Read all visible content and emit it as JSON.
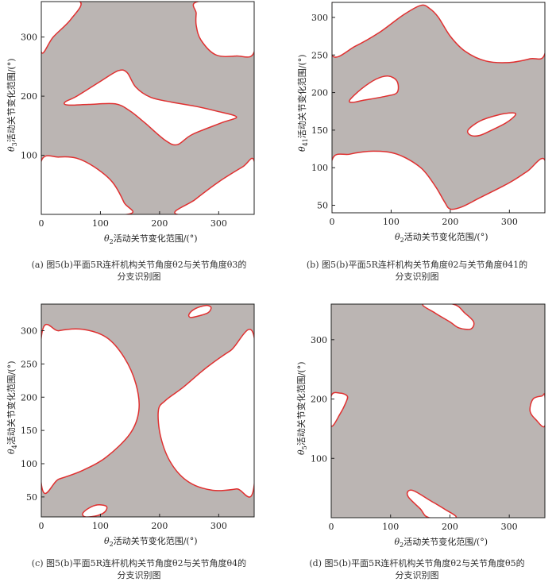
{
  "chart_data": [
    {
      "type": "region",
      "panel": "a",
      "caption_line1": "(a) 图5(b)平面5R连杆机构关节角度θ2与关节角度θ3的",
      "caption_line2": "分支识别图",
      "xlabel_pre": "θ",
      "xlabel_sub": "2",
      "xlabel_post": "活动关节变化范围/(°)",
      "ylabel_pre": "θ",
      "ylabel_sub": "3",
      "ylabel_post": "活动关节变化范围/(°)",
      "xlim": [
        0,
        360
      ],
      "ylim": [
        0,
        360
      ],
      "xticks": [
        0,
        100,
        200,
        300
      ],
      "yticks": [
        100,
        200,
        300
      ],
      "fill_color": "#bbb5b3",
      "boundary_color": "#e03030",
      "holes": [
        [
          [
            0,
            275
          ],
          [
            20,
            300
          ],
          [
            50,
            330
          ],
          [
            65,
            360
          ],
          [
            0,
            360
          ]
        ],
        [
          [
            265,
            360
          ],
          [
            262,
            340
          ],
          [
            262,
            320
          ],
          [
            270,
            295
          ],
          [
            295,
            270
          ],
          [
            330,
            268
          ],
          [
            360,
            275
          ],
          [
            360,
            360
          ]
        ],
        [
          [
            0,
            90
          ],
          [
            30,
            97
          ],
          [
            60,
            95
          ],
          [
            90,
            80
          ],
          [
            120,
            55
          ],
          [
            140,
            20
          ],
          [
            145,
            0
          ],
          [
            0,
            0
          ]
        ],
        [
          [
            230,
            0
          ],
          [
            260,
            25
          ],
          [
            300,
            55
          ],
          [
            340,
            80
          ],
          [
            360,
            90
          ],
          [
            360,
            0
          ]
        ],
        [
          [
            40,
            190
          ],
          [
            60,
            200
          ],
          [
            100,
            225
          ],
          [
            130,
            243
          ],
          [
            145,
            240
          ],
          [
            160,
            215
          ],
          [
            185,
            198
          ],
          [
            220,
            190
          ],
          [
            260,
            183
          ],
          [
            295,
            175
          ],
          [
            330,
            165
          ],
          [
            305,
            155
          ],
          [
            255,
            135
          ],
          [
            230,
            118
          ],
          [
            210,
            125
          ],
          [
            175,
            155
          ],
          [
            150,
            175
          ],
          [
            125,
            187
          ],
          [
            80,
            186
          ],
          [
            45,
            185
          ]
        ]
      ]
    },
    {
      "type": "region",
      "panel": "b",
      "caption_line1": "(b) 图5(b)平面5R连杆机构关节角度θ2与关节角度θ41的",
      "caption_line2": "分支识别图",
      "xlabel_pre": "θ",
      "xlabel_sub": "2",
      "xlabel_post": "活动关节变化范围/(°)",
      "ylabel_pre": "θ",
      "ylabel_sub": "41",
      "ylabel_post": "活动关节变化范围/(°)",
      "xlim": [
        0,
        360
      ],
      "ylim": [
        40,
        320
      ],
      "xticks": [
        0,
        100,
        200,
        300
      ],
      "yticks": [
        50,
        100,
        150,
        200,
        250,
        300
      ],
      "fill_color": "#bbb5b3",
      "boundary_color": "#e03030",
      "holes": [
        [
          [
            0,
            250
          ],
          [
            40,
            262
          ],
          [
            80,
            280
          ],
          [
            120,
            303
          ],
          [
            150,
            316
          ],
          [
            165,
            312
          ],
          [
            180,
            300
          ],
          [
            200,
            275
          ],
          [
            225,
            255
          ],
          [
            260,
            242
          ],
          [
            300,
            240
          ],
          [
            335,
            245
          ],
          [
            360,
            252
          ],
          [
            360,
            320
          ],
          [
            0,
            320
          ]
        ],
        [
          [
            0,
            110
          ],
          [
            30,
            118
          ],
          [
            70,
            122
          ],
          [
            110,
            118
          ],
          [
            150,
            100
          ],
          [
            175,
            75
          ],
          [
            190,
            55
          ],
          [
            200,
            45
          ],
          [
            220,
            48
          ],
          [
            250,
            60
          ],
          [
            300,
            80
          ],
          [
            330,
            95
          ],
          [
            360,
            110
          ],
          [
            360,
            40
          ],
          [
            0,
            40
          ]
        ],
        [
          [
            30,
            190
          ],
          [
            50,
            205
          ],
          [
            75,
            218
          ],
          [
            95,
            222
          ],
          [
            110,
            215
          ],
          [
            110,
            200
          ],
          [
            90,
            195
          ],
          [
            55,
            190
          ],
          [
            35,
            187
          ]
        ],
        [
          [
            230,
            150
          ],
          [
            250,
            162
          ],
          [
            280,
            170
          ],
          [
            305,
            173
          ],
          [
            310,
            170
          ],
          [
            295,
            160
          ],
          [
            270,
            150
          ],
          [
            250,
            143
          ],
          [
            235,
            143
          ]
        ]
      ]
    },
    {
      "type": "region",
      "panel": "c",
      "caption_line1": "(c) 图5(b)平面5R连杆机构关节角度θ2与关节角度θ4的",
      "caption_line2": "分支识别图",
      "xlabel_pre": "θ",
      "xlabel_sub": "2",
      "xlabel_post": "活动关节变化范围/(°)",
      "ylabel_pre": "θ",
      "ylabel_sub": "4",
      "ylabel_post": "活动关节变化范围/(°)",
      "xlim": [
        0,
        360
      ],
      "ylim": [
        20,
        340
      ],
      "xticks": [
        0,
        100,
        200,
        300
      ],
      "yticks": [
        50,
        100,
        150,
        200,
        250,
        300
      ],
      "fill_color": "#bbb5b3",
      "boundary_color": "#e03030",
      "holes": [
        [
          [
            0,
            290
          ],
          [
            30,
            300
          ],
          [
            70,
            302
          ],
          [
            110,
            290
          ],
          [
            140,
            260
          ],
          [
            160,
            220
          ],
          [
            165,
            180
          ],
          [
            150,
            145
          ],
          [
            110,
            110
          ],
          [
            70,
            90
          ],
          [
            30,
            77
          ],
          [
            0,
            70
          ]
        ],
        [
          [
            360,
            290
          ],
          [
            320,
            270
          ],
          [
            280,
            245
          ],
          [
            240,
            215
          ],
          [
            210,
            195
          ],
          [
            198,
            180
          ],
          [
            202,
            140
          ],
          [
            220,
            100
          ],
          [
            250,
            72
          ],
          [
            290,
            60
          ],
          [
            330,
            62
          ],
          [
            360,
            68
          ]
        ],
        [
          [
            250,
            325
          ],
          [
            260,
            333
          ],
          [
            278,
            338
          ],
          [
            287,
            335
          ],
          [
            282,
            327
          ],
          [
            265,
            322
          ],
          [
            252,
            320
          ]
        ],
        [
          [
            70,
            25
          ],
          [
            80,
            33
          ],
          [
            95,
            38
          ],
          [
            110,
            36
          ],
          [
            108,
            28
          ],
          [
            95,
            22
          ],
          [
            75,
            20
          ]
        ]
      ]
    },
    {
      "type": "region",
      "panel": "d",
      "caption_line1": "(d) 图5(b)平面5R连杆机构关节角度θ2与关节角度θ5的",
      "caption_line2": "分支识别图",
      "xlabel_pre": "θ",
      "xlabel_sub": "2",
      "xlabel_post": "活动关节变化范围/(°)",
      "ylabel_pre": "θ",
      "ylabel_sub": "5",
      "ylabel_post": "活动关节变化范围/(°)",
      "xlim": [
        0,
        360
      ],
      "ylim": [
        0,
        360
      ],
      "xticks": [
        0,
        100,
        200,
        300
      ],
      "yticks": [
        100,
        200,
        300
      ],
      "fill_color": "#bbb5b3",
      "boundary_color": "#e03030",
      "holes": [
        [
          [
            155,
            360
          ],
          [
            175,
            345
          ],
          [
            200,
            330
          ],
          [
            215,
            320
          ],
          [
            235,
            318
          ],
          [
            240,
            330
          ],
          [
            225,
            345
          ],
          [
            205,
            360
          ]
        ],
        [
          [
            0,
            155
          ],
          [
            15,
            175
          ],
          [
            25,
            195
          ],
          [
            27,
            205
          ],
          [
            15,
            210
          ],
          [
            0,
            205
          ]
        ],
        [
          [
            360,
            155
          ],
          [
            345,
            165
          ],
          [
            335,
            180
          ],
          [
            340,
            200
          ],
          [
            355,
            205
          ],
          [
            360,
            205
          ]
        ],
        [
          [
            165,
            0
          ],
          [
            150,
            15
          ],
          [
            130,
            35
          ],
          [
            130,
            45
          ],
          [
            140,
            45
          ],
          [
            165,
            30
          ],
          [
            190,
            15
          ],
          [
            210,
            0
          ]
        ]
      ]
    }
  ]
}
